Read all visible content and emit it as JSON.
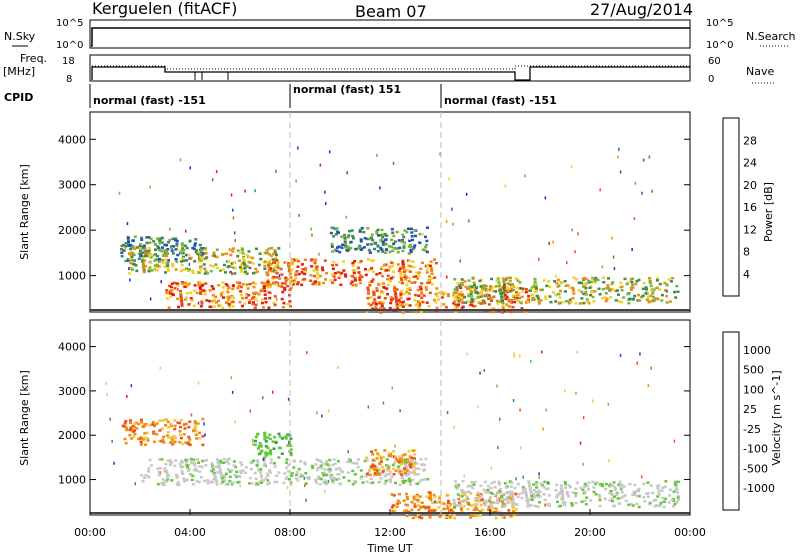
{
  "header": {
    "station": "Kerguelen (fitACF)",
    "beam": "Beam 07",
    "date": "27/Aug/2014"
  },
  "top_panels": {
    "nsky_label": "N.Sky",
    "nsky_ticks": [
      "10^5",
      "10^0"
    ],
    "nsearch_label": "N.Search",
    "nsearch_ticks": [
      "10^5",
      "10^0"
    ],
    "freq_label_1": "Freq.",
    "freq_label_2": "[MHz]",
    "freq_ticks": [
      "18",
      "8"
    ],
    "nave_label": "Nave",
    "nave_ticks": [
      "60",
      "0"
    ],
    "cpid_label": "CPID",
    "cpid_modes": [
      "normal (fast) -151",
      "normal (fast) 151",
      "normal (fast) -151"
    ]
  },
  "chart_data": [
    {
      "type": "heatmap",
      "panel": "power",
      "ylabel": "Slant Range [km]",
      "y_ticks": [
        "1000",
        "2000",
        "3000",
        "4000"
      ],
      "ylim": [
        200,
        4600
      ],
      "xlim": [
        0,
        24
      ],
      "colorbar_label": "Power [dB]",
      "colorbar_ticks": [
        "4",
        "8",
        "12",
        "16",
        "20",
        "24",
        "28"
      ],
      "colors": [
        "#1428e0",
        "#2850b4",
        "#3c8c50",
        "#78b43c",
        "#f0d228",
        "#f08c14",
        "#f05014",
        "#e01e0a"
      ],
      "echo_regions": [
        {
          "t_start": 1.2,
          "t_end": 4.5,
          "range_km": 1600,
          "level": "weak"
        },
        {
          "t_start": 1.5,
          "t_end": 7.5,
          "range_km": 1350,
          "level": "moderate"
        },
        {
          "t_start": 3.0,
          "t_end": 8.0,
          "range_km": 600,
          "level": "strong"
        },
        {
          "t_start": 7.0,
          "t_end": 13.8,
          "range_km": 1100,
          "level": "strong"
        },
        {
          "t_start": 9.5,
          "t_end": 13.5,
          "range_km": 1800,
          "level": "weak"
        },
        {
          "t_start": 11.0,
          "t_end": 17.5,
          "range_km": 500,
          "level": "strong"
        },
        {
          "t_start": 14.5,
          "t_end": 23.5,
          "range_km": 700,
          "level": "moderate"
        }
      ]
    },
    {
      "type": "heatmap",
      "panel": "velocity",
      "ylabel": "Slant Range [km]",
      "y_ticks": [
        "1000",
        "2000",
        "3000",
        "4000"
      ],
      "ylim": [
        200,
        4600
      ],
      "xlim": [
        0,
        24
      ],
      "colorbar_label": "Velocity [m s^-1]",
      "colorbar_ticks": [
        "1000",
        "500",
        "100",
        "25",
        "-25",
        "-100",
        "-500",
        "-1000"
      ],
      "colors": [
        "#1e3cc8",
        "#3c78b4",
        "#3c9646",
        "#64c83c",
        "#c8c8c8",
        "#f0c83c",
        "#f08c14",
        "#f05014",
        "#e01e0a"
      ],
      "echo_regions": [
        {
          "t_start": 1.2,
          "t_end": 4.5,
          "range_km": 2100,
          "level": "away"
        },
        {
          "t_start": 2.0,
          "t_end": 13.5,
          "range_km": 1200,
          "level": "ground"
        },
        {
          "t_start": 6.5,
          "t_end": 8.0,
          "range_km": 1800,
          "level": "toward"
        },
        {
          "t_start": 11.0,
          "t_end": 13.0,
          "range_km": 1400,
          "level": "away"
        },
        {
          "t_start": 12.0,
          "t_end": 17.0,
          "range_km": 450,
          "level": "away"
        },
        {
          "t_start": 14.5,
          "t_end": 23.5,
          "range_km": 700,
          "level": "ground"
        }
      ]
    }
  ],
  "x_axis": {
    "ticks": [
      "00:00",
      "04:00",
      "08:00",
      "12:00",
      "16:00",
      "20:00",
      "00:00"
    ],
    "label": "Time UT"
  }
}
